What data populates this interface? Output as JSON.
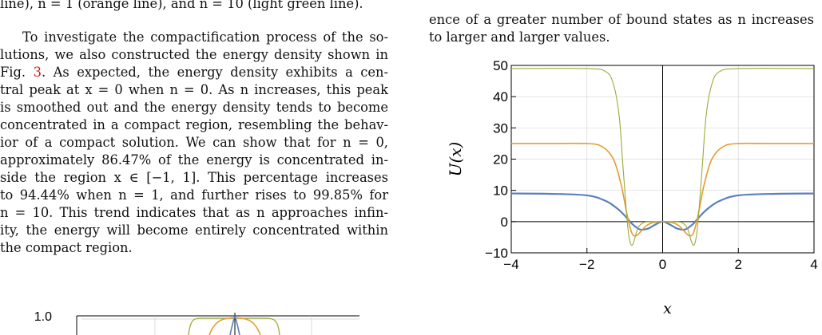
{
  "left_column": {
    "caption_tail": "line), n = 1 (orange line), and n = 10 (light green line).",
    "paragraph_lines": [
      "To investigate the compactification process of the so-",
      "lutions, we also constructed the energy density shown in",
      "Fig. 3. As expected, the energy density exhibits a cen-",
      "tral peak at x = 0 when n = 0. As n increases, this peak",
      "is smoothed out and the energy density tends to become",
      "concentrated in a compact region, resembling the behav-",
      "ior of a compact solution. We can show that for n = 0,",
      "approximately 86.47% of the energy is concentrated in-",
      "side the region x ∈ [−1, 1]. This percentage increases",
      "to 94.44% when n = 1, and further rises to 99.85% for",
      "n = 10. This trend indicates that as n approaches infin-",
      "ity, the energy will become entirely concentrated within",
      "the compact region."
    ],
    "figure_ref": "3",
    "partial_plot_tick": "1.0"
  },
  "right_column": {
    "text_line_1": "ence of a greater number of bound states as n increases",
    "text_line_2": "to larger and larger values."
  },
  "chart_data": {
    "type": "line",
    "xlabel": "x",
    "ylabel": "U(x)",
    "xlim": [
      -4,
      4
    ],
    "ylim": [
      -10,
      50
    ],
    "x_ticks": [
      "−4",
      "−2",
      "0",
      "2",
      "4"
    ],
    "y_ticks": [
      "−10",
      "0",
      "10",
      "20",
      "30",
      "40",
      "50"
    ],
    "grid": true,
    "series": [
      {
        "color": "#5b7fbd",
        "x": [
          -4,
          -3,
          -2,
          -1.5,
          -1.2,
          -1,
          -0.8,
          -0.6,
          -0.4,
          -0.2,
          0,
          0.2,
          0.4,
          0.6,
          0.8,
          1,
          1.2,
          1.5,
          2,
          3,
          4
        ],
        "y": [
          9,
          8.9,
          8.4,
          6.6,
          4.2,
          1.9,
          -0.8,
          -2.5,
          -2.3,
          -1,
          0,
          -1,
          -2.3,
          -2.5,
          -0.8,
          1.9,
          4.2,
          6.6,
          8.4,
          8.9,
          9
        ]
      },
      {
        "color": "#e59c2e",
        "x": [
          -4,
          -3,
          -2,
          -1.6,
          -1.3,
          -1.1,
          -1,
          -0.9,
          -0.8,
          -0.7,
          -0.6,
          -0.45,
          -0.3,
          -0.15,
          0,
          0.15,
          0.3,
          0.45,
          0.6,
          0.7,
          0.8,
          0.9,
          1,
          1.1,
          1.3,
          1.6,
          2,
          3,
          4
        ],
        "y": [
          25,
          25,
          25,
          24,
          20,
          12,
          6,
          0,
          -4,
          -4.5,
          -3.5,
          -1.5,
          -0.5,
          -0.1,
          0,
          -0.1,
          -0.5,
          -1.5,
          -3.5,
          -4.5,
          -4,
          0,
          6,
          12,
          20,
          24,
          25,
          25,
          25
        ]
      },
      {
        "color": "#9aab3a",
        "x": [
          -4,
          -2,
          -1.5,
          -1.3,
          -1.15,
          -1.05,
          -1,
          -0.95,
          -0.9,
          -0.85,
          -0.8,
          -0.75,
          -0.65,
          -0.5,
          -0.3,
          -0.15,
          0,
          0.15,
          0.3,
          0.5,
          0.65,
          0.75,
          0.8,
          0.85,
          0.9,
          0.95,
          1,
          1.05,
          1.15,
          1.3,
          1.5,
          2,
          4
        ],
        "y": [
          49,
          49,
          48,
          44,
          34,
          18,
          10,
          2,
          -4,
          -7,
          -7.5,
          -6,
          -2,
          -0.3,
          -0.1,
          0,
          0,
          0,
          -0.1,
          -0.3,
          -2,
          -6,
          -7.5,
          -7,
          -4,
          2,
          10,
          18,
          34,
          44,
          48,
          49,
          49
        ]
      }
    ]
  },
  "colors": {
    "link": "#d01c1c",
    "blue": "#5b7fbd",
    "orange": "#e59c2e",
    "green": "#9aab3a"
  }
}
